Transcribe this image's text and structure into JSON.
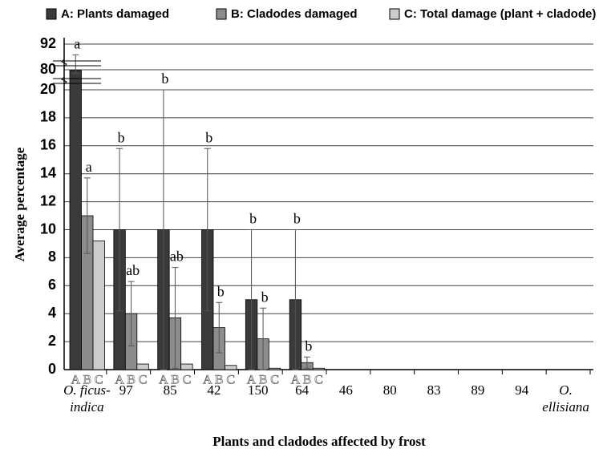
{
  "chart_data": {
    "type": "bar",
    "x_label": "Plants and cladodes affected by frost",
    "y_label": "Average percentage",
    "categories": [
      "O. ficus-indica",
      "97",
      "85",
      "42",
      "150",
      "64",
      "46",
      "80",
      "83",
      "89",
      "94",
      "O. ellisiana"
    ],
    "group_labels": [
      "A",
      "B",
      "C"
    ],
    "series": [
      {
        "name": "A:  Plants damaged",
        "color": "#3a3a3a",
        "values": [
          78,
          10,
          10,
          10,
          5,
          5,
          0,
          0,
          0,
          0,
          0,
          0
        ],
        "errors": [
          9,
          5.8,
          10,
          5.8,
          5,
          5,
          null,
          null,
          null,
          null,
          null,
          null
        ],
        "letters": [
          "a",
          "b",
          "b",
          "b",
          "b",
          "b",
          null,
          null,
          null,
          null,
          null,
          null
        ]
      },
      {
        "name": "B:  Cladodes damaged",
        "color": "#8c8c8c",
        "values": [
          11,
          4,
          3.7,
          3,
          2.2,
          0.5,
          0,
          0,
          0,
          0,
          0,
          0
        ],
        "errors": [
          2.7,
          2.3,
          3.6,
          1.8,
          2.2,
          0.4,
          null,
          null,
          null,
          null,
          null,
          null
        ],
        "letters": [
          "a",
          "ab",
          "ab",
          "b",
          "b",
          "b",
          null,
          null,
          null,
          null,
          null,
          null
        ]
      },
      {
        "name": "C:  Total damage (plant + cladode)",
        "color": "#cccccc",
        "values": [
          9.2,
          0.4,
          0.4,
          0.3,
          0.1,
          0.1,
          0,
          0,
          0,
          0,
          0,
          0
        ]
      }
    ],
    "ylim": [
      0,
      92
    ],
    "axis_break": [
      20,
      80
    ],
    "yticks": [
      0,
      2,
      4,
      6,
      8,
      10,
      12,
      14,
      16,
      18,
      20,
      80,
      92
    ],
    "grid": true,
    "legend": "top"
  }
}
